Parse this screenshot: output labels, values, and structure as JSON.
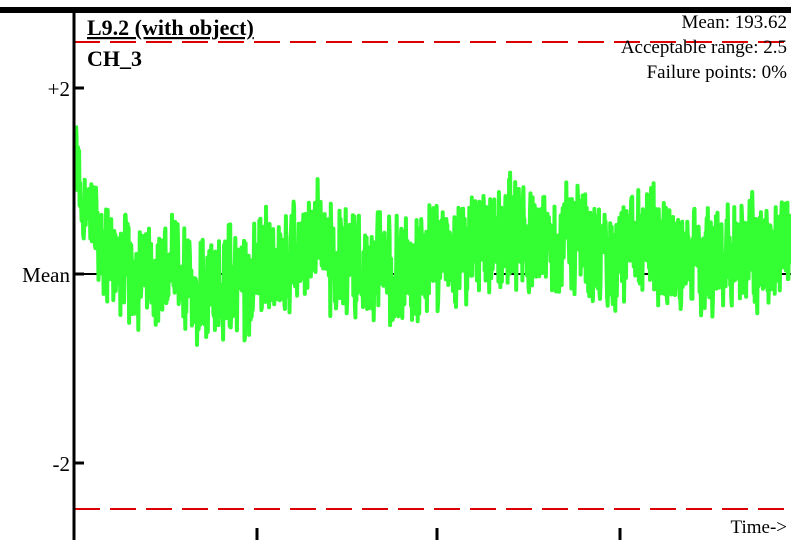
{
  "chart_data": {
    "type": "line",
    "title": "L9.2 (with object)",
    "subtitle": "CH_3",
    "stats": {
      "mean": "Mean: 193.62",
      "range": "Acceptable range: 2.5",
      "failures": "Failure points: 0%"
    },
    "xlabel": "Time->",
    "ylabel": "",
    "ylim": [
      -2.5,
      2.5
    ],
    "grid": false,
    "y_ticks": [
      {
        "value": 2,
        "label": "+2"
      },
      {
        "value": 0,
        "label": "Mean"
      },
      {
        "value": -2,
        "label": "-2"
      }
    ],
    "limits": [
      2.5,
      -2.5
    ],
    "colors": {
      "series": "#33ff33",
      "limit": "#dd0000",
      "axis": "#000000"
    },
    "series": [
      {
        "keypoints_x": [
          0,
          0.01,
          0.02,
          0.05,
          0.1,
          0.15,
          0.2,
          0.25,
          0.3,
          0.35,
          0.4,
          0.45,
          0.5,
          0.55,
          0.6,
          0.65,
          0.7,
          0.75,
          0.8,
          0.85,
          0.9,
          0.95,
          1
        ],
        "keypoints_y": [
          1.2,
          0.8,
          0.5,
          0.15,
          0.05,
          -0.1,
          -0.12,
          -0.05,
          0.2,
          0.3,
          0.1,
          0.05,
          0.15,
          0.25,
          0.35,
          0.3,
          0.45,
          0.1,
          0.4,
          0.05,
          0.3,
          0.25,
          0.35
        ],
        "noise_amplitude": 0.55
      }
    ]
  }
}
